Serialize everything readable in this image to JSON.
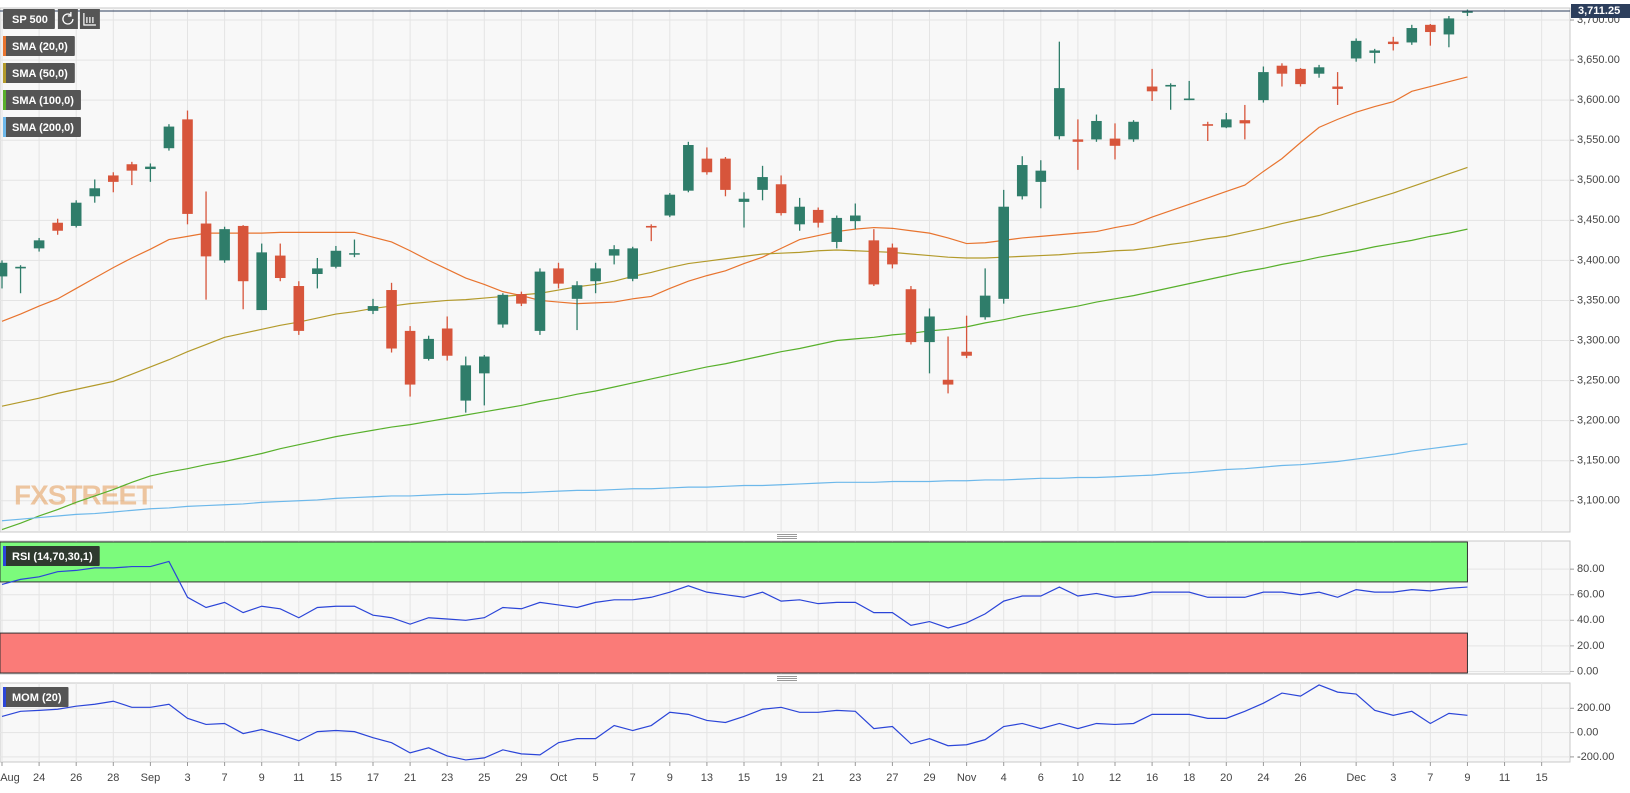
{
  "chart_data": [
    {
      "type": "candlestick",
      "title": "SP 500",
      "watermark": "FXSTREET",
      "up_color": "#2f7d6a",
      "down_color": "#d7553b",
      "grid": true,
      "categories": [
        "Aug",
        null,
        "24",
        null,
        "26",
        null,
        "28",
        null,
        "Sep",
        null,
        "3",
        null,
        "7",
        null,
        "9",
        null,
        "11",
        null,
        "15",
        null,
        "17",
        null,
        "21",
        null,
        "23",
        null,
        "25",
        null,
        "29",
        null,
        "Oct",
        null,
        "5",
        null,
        "7",
        null,
        "9",
        null,
        "13",
        null,
        "15",
        null,
        "19",
        null,
        "21",
        null,
        "23",
        null,
        "27",
        null,
        "29",
        null,
        "Nov",
        null,
        "4",
        null,
        "6",
        null,
        "10",
        null,
        "12",
        null,
        "16",
        null,
        "18",
        null,
        "20",
        null,
        "24",
        null,
        "26",
        null,
        null,
        "Dec",
        null,
        "3",
        null,
        "7",
        null,
        "9",
        null,
        "11",
        null,
        "15",
        null
      ],
      "open": [
        3380,
        3390,
        3415,
        3447,
        3443,
        3480,
        3506,
        3520,
        3514,
        3540,
        3576,
        3446,
        3400,
        3443,
        3338,
        3406,
        3368,
        3383,
        3392,
        3408,
        3337,
        3363,
        3312,
        3277,
        3315,
        3225,
        3259,
        3320,
        3358,
        3312,
        3390,
        3352,
        3374,
        3406,
        3377,
        3443,
        3456,
        3487,
        3527,
        3527,
        3473,
        3488,
        3495,
        3445,
        3463,
        3423,
        3449,
        3425,
        3416,
        3364,
        3298,
        3251,
        3286,
        3329,
        3352,
        3480,
        3498,
        3555,
        3551,
        3551,
        3552,
        3551,
        3617,
        3617,
        3600,
        3570,
        3566,
        3575,
        3600,
        3643,
        3639,
        3633,
        3617,
        3652,
        3659,
        3673,
        3672,
        3694,
        3682,
        3709,
        null,
        null,
        null,
        null,
        null
      ],
      "high": [
        3400,
        3394,
        3428,
        3452,
        3475,
        3501,
        3510,
        3523,
        3521,
        3570,
        3587,
        3486,
        3442,
        3444,
        3421,
        3421,
        3374,
        3403,
        3418,
        3426,
        3352,
        3372,
        3318,
        3306,
        3330,
        3280,
        3282,
        3359,
        3361,
        3390,
        3397,
        3374,
        3397,
        3419,
        3417,
        3445,
        3484,
        3548,
        3541,
        3529,
        3485,
        3518,
        3506,
        3478,
        3466,
        3456,
        3471,
        3439,
        3421,
        3368,
        3340,
        3305,
        3331,
        3390,
        3488,
        3530,
        3525,
        3673,
        3576,
        3582,
        3571,
        3575,
        3639,
        3621,
        3624,
        3573,
        3584,
        3594,
        3642,
        3646,
        3640,
        3644,
        3635,
        3677,
        3664,
        3679,
        3694,
        3695,
        3705,
        3713,
        null,
        null,
        null,
        null,
        null
      ],
      "low": [
        3365,
        3359,
        3411,
        3432,
        3441,
        3472,
        3485,
        3494,
        3498,
        3537,
        3445,
        3351,
        3397,
        3339,
        3338,
        3374,
        3307,
        3365,
        3390,
        3404,
        3333,
        3285,
        3230,
        3275,
        3275,
        3210,
        3219,
        3316,
        3343,
        3307,
        3365,
        3313,
        3359,
        3395,
        3374,
        3424,
        3454,
        3485,
        3507,
        3480,
        3441,
        3475,
        3456,
        3437,
        3441,
        3415,
        3439,
        3368,
        3390,
        3295,
        3259,
        3234,
        3278,
        3326,
        3346,
        3476,
        3465,
        3551,
        3513,
        3548,
        3526,
        3548,
        3599,
        3588,
        3600,
        3549,
        3565,
        3551,
        3597,
        3617,
        3617,
        3628,
        3594,
        3648,
        3646,
        3662,
        3669,
        3668,
        3666,
        3705,
        null,
        null,
        null,
        null,
        null
      ],
      "close": [
        3397,
        3392,
        3425,
        3437,
        3472,
        3490,
        3498,
        3512,
        3517,
        3567,
        3458,
        3405,
        3439,
        3374,
        3410,
        3378,
        3312,
        3390,
        3412,
        3409,
        3343,
        3290,
        3245,
        3302,
        3281,
        3269,
        3280,
        3357,
        3346,
        3386,
        3371,
        3369,
        3390,
        3414,
        3415,
        3441,
        3482,
        3544,
        3510,
        3488,
        3477,
        3504,
        3459,
        3467,
        3447,
        3453,
        3456,
        3370,
        3395,
        3298,
        3330,
        3245,
        3281,
        3356,
        3467,
        3519,
        3512,
        3615,
        3548,
        3574,
        3543,
        3573,
        3611,
        3619,
        3602,
        3568,
        3576,
        3571,
        3635,
        3633,
        3620,
        3641,
        3614,
        3674,
        3662,
        3670,
        3690,
        3685,
        3702,
        3711.25,
        null,
        null,
        null,
        null,
        null
      ],
      "series": [
        {
          "name": "SMA (20,0)",
          "color": "#e8742f",
          "values": [
            3324,
            3333,
            3343,
            3352,
            3365,
            3378,
            3391,
            3403,
            3414,
            3426,
            3430,
            3434,
            3434,
            3434,
            3434,
            3435,
            3435,
            3435,
            3435,
            3435,
            3429,
            3423,
            3412,
            3400,
            3389,
            3378,
            3370,
            3361,
            3356,
            3350,
            3348,
            3346,
            3347,
            3348,
            3352,
            3355,
            3365,
            3374,
            3381,
            3387,
            3396,
            3404,
            3415,
            3426,
            3431,
            3436,
            3439,
            3441,
            3440,
            3437,
            3434,
            3428,
            3421,
            3422,
            3425,
            3428,
            3430,
            3432,
            3434,
            3436,
            3441,
            3445,
            3454,
            3462,
            3470,
            3478,
            3486,
            3494,
            3511,
            3527,
            3547,
            3566,
            3576,
            3585,
            3592,
            3598,
            3611,
            3617,
            3623,
            3629,
            null,
            null,
            null,
            null,
            null
          ]
        },
        {
          "name": "SMA (50,0)",
          "color": "#b39a2b",
          "values": [
            3218,
            3223,
            3228,
            3234,
            3239,
            3244,
            3249,
            3258,
            3267,
            3276,
            3286,
            3295,
            3304,
            3309,
            3314,
            3319,
            3323,
            3328,
            3333,
            3336,
            3340,
            3343,
            3346,
            3348,
            3350,
            3351,
            3353,
            3355,
            3357,
            3359,
            3363,
            3367,
            3370,
            3374,
            3380,
            3385,
            3391,
            3396,
            3399,
            3402,
            3405,
            3408,
            3409,
            3410,
            3412,
            3413,
            3412,
            3411,
            3410,
            3408,
            3406,
            3404,
            3403,
            3403,
            3404,
            3405,
            3406,
            3407,
            3409,
            3410,
            3412,
            3413,
            3416,
            3420,
            3423,
            3427,
            3430,
            3435,
            3440,
            3446,
            3451,
            3456,
            3463,
            3470,
            3477,
            3484,
            3492,
            3500,
            3508,
            3516,
            null,
            null,
            null,
            null,
            null
          ]
        },
        {
          "name": "SMA (100,0)",
          "color": "#58b02c",
          "values": [
            3064,
            3072,
            3081,
            3089,
            3098,
            3106,
            3114,
            3123,
            3131,
            3136,
            3140,
            3145,
            3149,
            3154,
            3159,
            3165,
            3170,
            3175,
            3180,
            3184,
            3188,
            3192,
            3195,
            3199,
            3203,
            3207,
            3211,
            3215,
            3219,
            3224,
            3228,
            3233,
            3237,
            3242,
            3247,
            3252,
            3257,
            3262,
            3267,
            3271,
            3276,
            3281,
            3286,
            3290,
            3295,
            3300,
            3302,
            3304,
            3307,
            3309,
            3312,
            3314,
            3317,
            3322,
            3326,
            3331,
            3335,
            3339,
            3343,
            3348,
            3352,
            3356,
            3361,
            3366,
            3371,
            3376,
            3381,
            3386,
            3390,
            3395,
            3399,
            3404,
            3408,
            3412,
            3417,
            3421,
            3425,
            3430,
            3434,
            3439,
            null,
            null,
            null,
            null,
            null
          ]
        },
        {
          "name": "SMA (200,0)",
          "color": "#6db8ea",
          "values": [
            3075,
            3077,
            3079,
            3081,
            3083,
            3084,
            3086,
            3088,
            3090,
            3091,
            3093,
            3094,
            3095,
            3096,
            3098,
            3099,
            3100,
            3101,
            3103,
            3104,
            3105,
            3106,
            3106,
            3107,
            3108,
            3108,
            3109,
            3110,
            3110,
            3111,
            3112,
            3113,
            3113,
            3114,
            3115,
            3115,
            3116,
            3117,
            3117,
            3118,
            3119,
            3119,
            3120,
            3121,
            3122,
            3123,
            3123,
            3123,
            3124,
            3124,
            3124,
            3125,
            3125,
            3126,
            3126,
            3127,
            3128,
            3128,
            3129,
            3129,
            3130,
            3131,
            3132,
            3134,
            3135,
            3137,
            3139,
            3140,
            3142,
            3144,
            3145,
            3147,
            3149,
            3152,
            3155,
            3158,
            3162,
            3165,
            3168,
            3171,
            null,
            null,
            null,
            null,
            null
          ]
        }
      ],
      "last_price": {
        "value": 3711.25,
        "label": "3,711.25"
      },
      "ylim": [
        3061,
        3715
      ],
      "yticks": [
        {
          "value": 3100,
          "label": "3,100.00"
        },
        {
          "value": 3150,
          "label": "3,150.00"
        },
        {
          "value": 3200,
          "label": "3,200.00"
        },
        {
          "value": 3250,
          "label": "3,250.00"
        },
        {
          "value": 3300,
          "label": "3,300.00"
        },
        {
          "value": 3350,
          "label": "3,350.00"
        },
        {
          "value": 3400,
          "label": "3,400.00"
        },
        {
          "value": 3450,
          "label": "3,450.00"
        },
        {
          "value": 3500,
          "label": "3,500.00"
        },
        {
          "value": 3550,
          "label": "3,550.00"
        },
        {
          "value": 3600,
          "label": "3,600.00"
        },
        {
          "value": 3650,
          "label": "3,650.00"
        },
        {
          "value": 3700,
          "label": "3,700.00"
        }
      ]
    },
    {
      "type": "line",
      "title": "RSI (14,70,30,1)",
      "color": "#2b45d8",
      "grid": true,
      "overbought": 70,
      "oversold": 30,
      "overbought_color": "#7cfb7c",
      "oversold_color": "#fa7b78",
      "values": [
        68,
        72,
        74,
        78,
        79,
        81,
        81,
        82,
        82,
        86,
        58,
        50,
        54,
        46,
        51,
        49,
        42,
        50,
        51,
        51,
        44,
        42,
        37,
        42,
        41,
        40,
        42,
        50,
        49,
        54,
        52,
        50,
        54,
        56,
        56,
        58,
        62,
        67,
        62,
        60,
        58,
        62,
        55,
        56,
        53,
        54,
        54,
        46,
        46,
        36,
        39,
        34,
        38,
        45,
        55,
        59,
        59,
        66,
        59,
        61,
        58,
        59,
        62,
        62,
        62,
        58,
        58,
        58,
        62,
        62,
        60,
        62,
        58,
        64,
        62,
        62,
        64,
        63,
        65,
        66,
        null,
        null,
        null,
        null,
        null
      ],
      "ylim": [
        -2,
        102
      ],
      "yticks": [
        {
          "value": 0,
          "label": "0.00"
        },
        {
          "value": 20,
          "label": "20.00"
        },
        {
          "value": 40,
          "label": "40.00"
        },
        {
          "value": 60,
          "label": "60.00"
        },
        {
          "value": 80,
          "label": "80.00"
        }
      ]
    },
    {
      "type": "line",
      "title": "MOM (20)",
      "color": "#2b45d8",
      "grid": true,
      "values": [
        133,
        175,
        183,
        192,
        217,
        233,
        258,
        208,
        208,
        233,
        117,
        67,
        75,
        -8,
        25,
        -17,
        -67,
        8,
        17,
        8,
        -42,
        -83,
        -167,
        -125,
        -192,
        -225,
        -208,
        -142,
        -175,
        -183,
        -83,
        -50,
        -50,
        58,
        17,
        58,
        167,
        150,
        100,
        83,
        133,
        192,
        208,
        167,
        167,
        183,
        175,
        33,
        50,
        -92,
        -50,
        -108,
        -100,
        -58,
        50,
        75,
        33,
        75,
        33,
        75,
        67,
        75,
        150,
        150,
        150,
        117,
        117,
        175,
        242,
        325,
        300,
        392,
        333,
        317,
        183,
        142,
        175,
        75,
        158,
        142,
        null,
        null,
        null,
        null,
        null
      ],
      "ylim": [
        -242,
        408
      ],
      "yticks": [
        {
          "value": -200,
          "label": "-200.00"
        },
        {
          "value": 0,
          "label": "0.00"
        },
        {
          "value": 200,
          "label": "200.00"
        }
      ]
    }
  ]
}
